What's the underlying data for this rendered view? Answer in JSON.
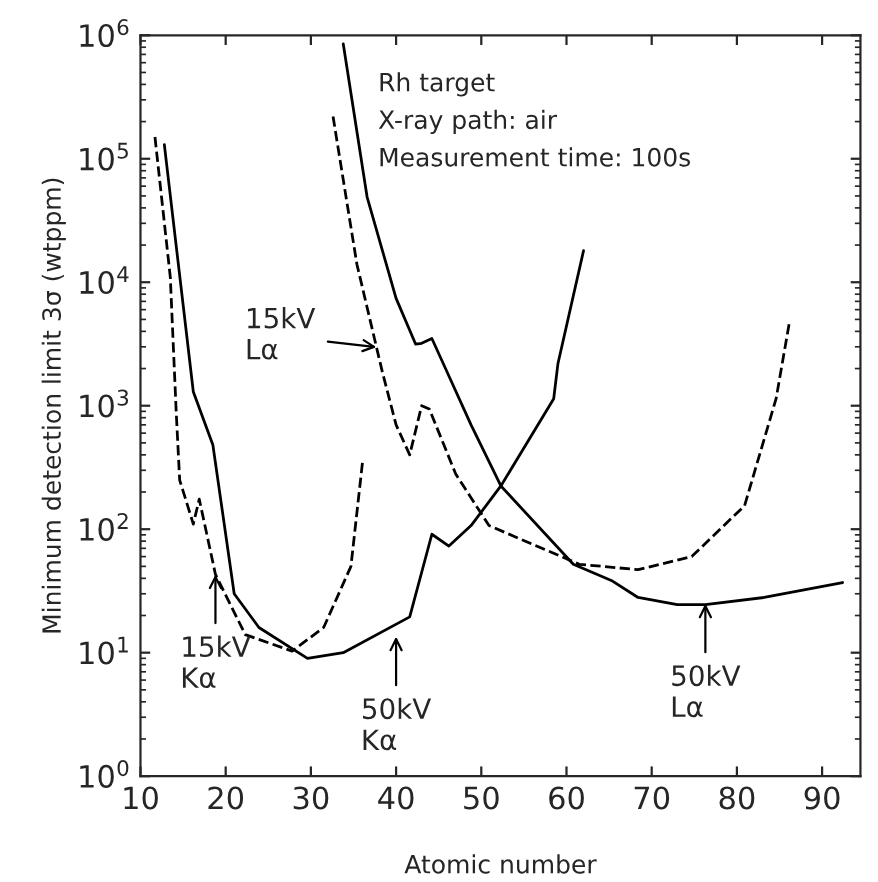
{
  "chart_data": {
    "type": "line",
    "xlabel": "Atomic number",
    "ylabel": "Minimum detection limit 3σ (wtppm)",
    "log": "y",
    "xlim": [
      10,
      94.5
    ],
    "ylim": [
      1,
      1000000
    ],
    "xticks": [
      10,
      20,
      30,
      40,
      50,
      60,
      70,
      80,
      90
    ],
    "yticks": [
      {
        "value": 1,
        "label": "10$^{0}$"
      },
      {
        "value": 10,
        "label": "10$^{1}$"
      },
      {
        "value": 100,
        "label": "10$^{2}$"
      },
      {
        "value": 1000,
        "label": "10$^{3}$"
      },
      {
        "value": 10000,
        "label": "10$^{4}$"
      },
      {
        "value": 100000,
        "label": "10$^{5}$"
      },
      {
        "value": 1000000,
        "label": "10$^{6}$"
      }
    ],
    "grid": false,
    "legend": false,
    "marker": "none",
    "series": [
      {
        "color": "#000000",
        "line_style": "solid",
        "x": [
          12.8,
          16.2,
          18.5,
          21,
          23.9,
          29.6,
          33.8,
          41.6,
          44.2,
          46.2,
          48.8,
          52.3,
          58.5,
          59,
          62
        ],
        "values": [
          130000,
          1300,
          480,
          30,
          16,
          9,
          10,
          19.5,
          91,
          73,
          107,
          224,
          1140,
          2200,
          18000
        ]
      },
      {
        "color": "#000000",
        "line_style": "solid",
        "x": [
          33.8,
          36.6,
          40,
          42.3,
          43,
          44.2,
          45.8,
          48.8,
          52.3,
          60.8,
          65.4,
          68.4,
          73,
          76.3,
          83.2,
          92.4
        ],
        "values": [
          850000,
          49000,
          7400,
          3150,
          3200,
          3500,
          2000,
          700,
          224,
          52,
          38,
          28,
          24.5,
          24.5,
          28,
          37
        ]
      },
      {
        "color": "#000000",
        "line_style": "dashed",
        "x": [
          11.7,
          13.5,
          14.2,
          14.6,
          16.2,
          16.9,
          18.8,
          22.3,
          27.8,
          31.5,
          34.7,
          36.1
        ],
        "values": [
          150000,
          11000,
          870,
          250,
          110,
          175,
          43,
          14,
          10.3,
          16,
          50,
          370
        ]
      },
      {
        "color": "#000000",
        "line_style": "dashed",
        "x": [
          32.6,
          35.4,
          38.4,
          40,
          41.6,
          43,
          43.9,
          47,
          50.9,
          61.5,
          68.4,
          74.7,
          80.9,
          84.6,
          86.2
        ],
        "values": [
          220000,
          14000,
          1860,
          700,
          400,
          1000,
          940,
          280,
          107,
          52,
          47,
          60,
          155,
          1140,
          4900
        ]
      }
    ],
    "annotations": [
      "Rh target\nX-ray path: air\nMeasurement time: 100s",
      {
        "text": "15kV\nKα",
        "x": 18.8,
        "y": 43
      },
      {
        "text": "50kV\nKα",
        "x": 40,
        "y": 13.5
      },
      {
        "text": "50kV\nLα",
        "x": 76.3,
        "y": 25
      },
      {
        "text": "15kV\nLα",
        "x": 37.7,
        "y": 2980
      }
    ]
  }
}
